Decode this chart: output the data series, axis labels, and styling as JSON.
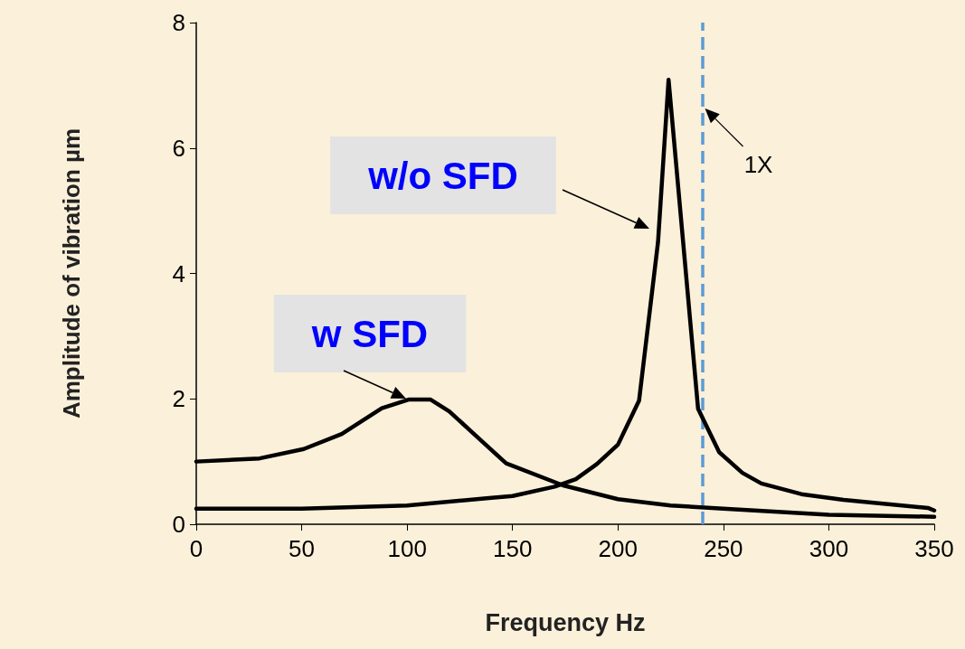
{
  "chart_data": {
    "type": "line",
    "xlabel": "Frequency Hz",
    "ylabel": "Amplitude of vibration µm",
    "xlim": [
      0,
      350
    ],
    "xticks": [
      0,
      50,
      100,
      150,
      200,
      250,
      300,
      350
    ],
    "ylim": [
      0,
      8
    ],
    "yticks": [
      0,
      2,
      4,
      6,
      8
    ],
    "grid": false,
    "marker": "none",
    "line_style": "solid",
    "series": [
      {
        "color": "#000000",
        "x": [
          0,
          50,
          100,
          140,
          150,
          170,
          180,
          190,
          200,
          210,
          219,
          224,
          238,
          248,
          259,
          268,
          287,
          307,
          347,
          350
        ],
        "values": [
          0.25,
          0.25,
          0.3,
          0.42,
          0.45,
          0.6,
          0.72,
          0.96,
          1.27,
          1.97,
          4.5,
          7.09,
          1.84,
          1.15,
          0.82,
          0.65,
          0.48,
          0.39,
          0.26,
          0.22
        ]
      },
      {
        "color": "#000000",
        "x": [
          0,
          30,
          51,
          69,
          88,
          101,
          111,
          120,
          133,
          147,
          174,
          200,
          225,
          250,
          300,
          350
        ],
        "values": [
          1.0,
          1.05,
          1.2,
          1.44,
          1.85,
          1.99,
          1.99,
          1.8,
          1.4,
          0.97,
          0.62,
          0.4,
          0.3,
          0.25,
          0.15,
          0.12
        ]
      }
    ],
    "ref_lines": [
      {
        "axis": "x",
        "value": 240,
        "label": "1X",
        "color": "#5b9bd5",
        "line_style": "dashed"
      }
    ],
    "annotations": [
      "w/o SFD",
      "w SFD"
    ]
  }
}
